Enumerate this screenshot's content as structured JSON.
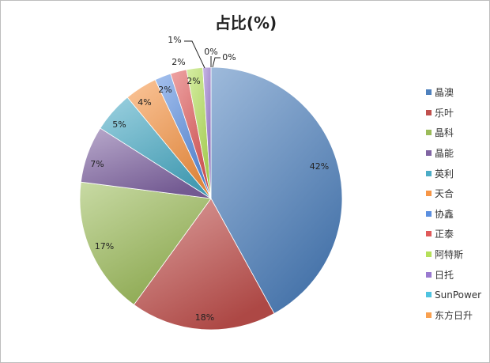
{
  "chart_data": {
    "type": "pie",
    "title": "占比(%)",
    "categories": [
      "晶澳",
      "乐叶",
      "晶科",
      "晶能",
      "英利",
      "天合",
      "协鑫",
      "正泰",
      "阿特斯",
      "日托",
      "SunPower",
      "东方日升"
    ],
    "values": [
      42,
      18,
      17,
      7,
      5,
      4,
      2,
      2,
      2,
      1,
      0,
      0
    ],
    "data_labels": [
      "42%",
      "18%",
      "17%",
      "7%",
      "5%",
      "4%",
      "2%",
      "2%",
      "2%",
      "1%",
      "0%",
      "0%"
    ],
    "colors": [
      "#4F81BD",
      "#C0504D",
      "#9BBB59",
      "#8064A2",
      "#4BACC6",
      "#F79646",
      "#5B8FE0",
      "#E05A5A",
      "#B5E05A",
      "#9A7AD0",
      "#4FC3E0",
      "#F9A050"
    ],
    "legend_position": "right"
  }
}
